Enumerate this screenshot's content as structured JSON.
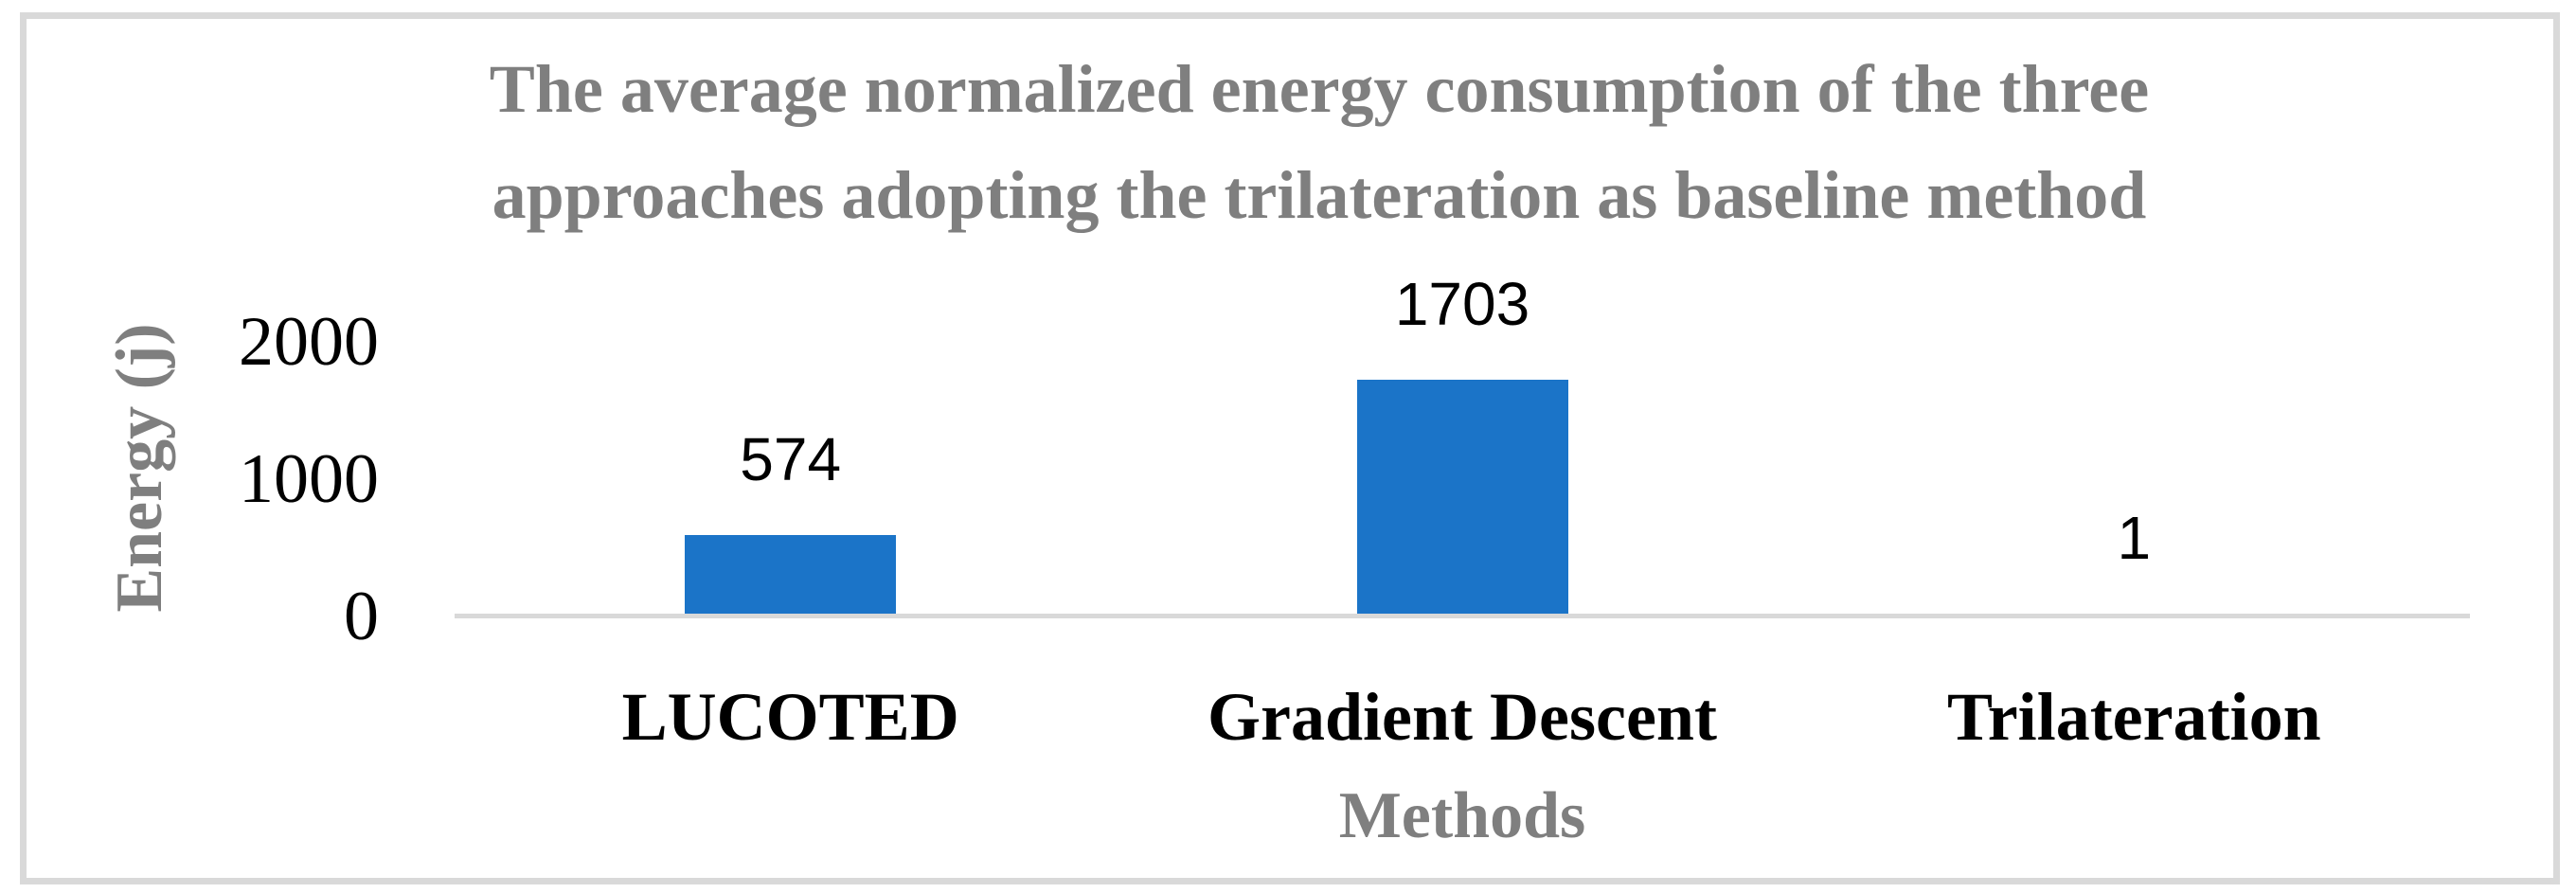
{
  "figure": {
    "background_color": "#FFFFFF",
    "border_color": "#D9D9D9"
  },
  "chart_data": {
    "type": "bar",
    "title": "The average normalized energy consumption of the three approaches adopting the trilateration as baseline method",
    "title_lines": [
      "The average normalized energy consumption of the three",
      "approaches adopting the trilateration as baseline method"
    ],
    "categories": [
      "LUCOTED",
      "Gradient Descent",
      "Trilateration"
    ],
    "values": [
      574,
      1703,
      1
    ],
    "data_labels": [
      "574",
      "1703",
      "1"
    ],
    "data_label_position": "outside-end",
    "xlabel": "Methods",
    "ylabel": "Energy (j)",
    "yticks": [
      0,
      1000,
      2000
    ],
    "ytick_labels": [
      "0",
      "1000",
      "2000"
    ],
    "ylim": [
      0,
      2000
    ],
    "grid": false,
    "legend": "none",
    "bar_color": "#1B74C8",
    "axis_line_color": "#D9D9D9",
    "title_color": "#7F7F7F",
    "axis_title_color": "#7F7F7F",
    "tick_label_color": "#000000",
    "category_label_color": "#000000",
    "data_label_color": "#000000"
  }
}
